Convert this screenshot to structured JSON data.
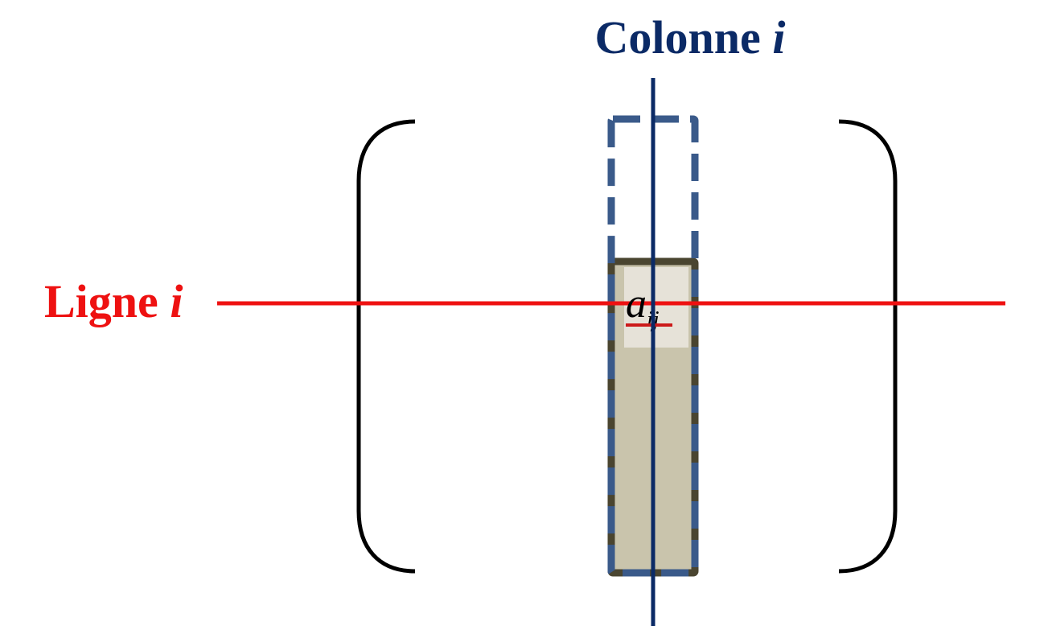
{
  "column_label": {
    "text": "Colonne ",
    "var": "i",
    "color": "#0b2a66"
  },
  "row_label": {
    "text": "Ligne ",
    "var": "i",
    "color": "#ee1111"
  },
  "element": {
    "base": "a",
    "subscript": "ij"
  },
  "colors": {
    "bracket": "#000000",
    "row_line": "#ee1111",
    "column_line": "#0b2a66",
    "column_box_dash": "#3a5a8a",
    "column_box_outline": "#4a4530",
    "column_fill": "#c9c4ac",
    "cell_fill": "#e6e2d8",
    "element_underline": "#cc1a1a"
  }
}
